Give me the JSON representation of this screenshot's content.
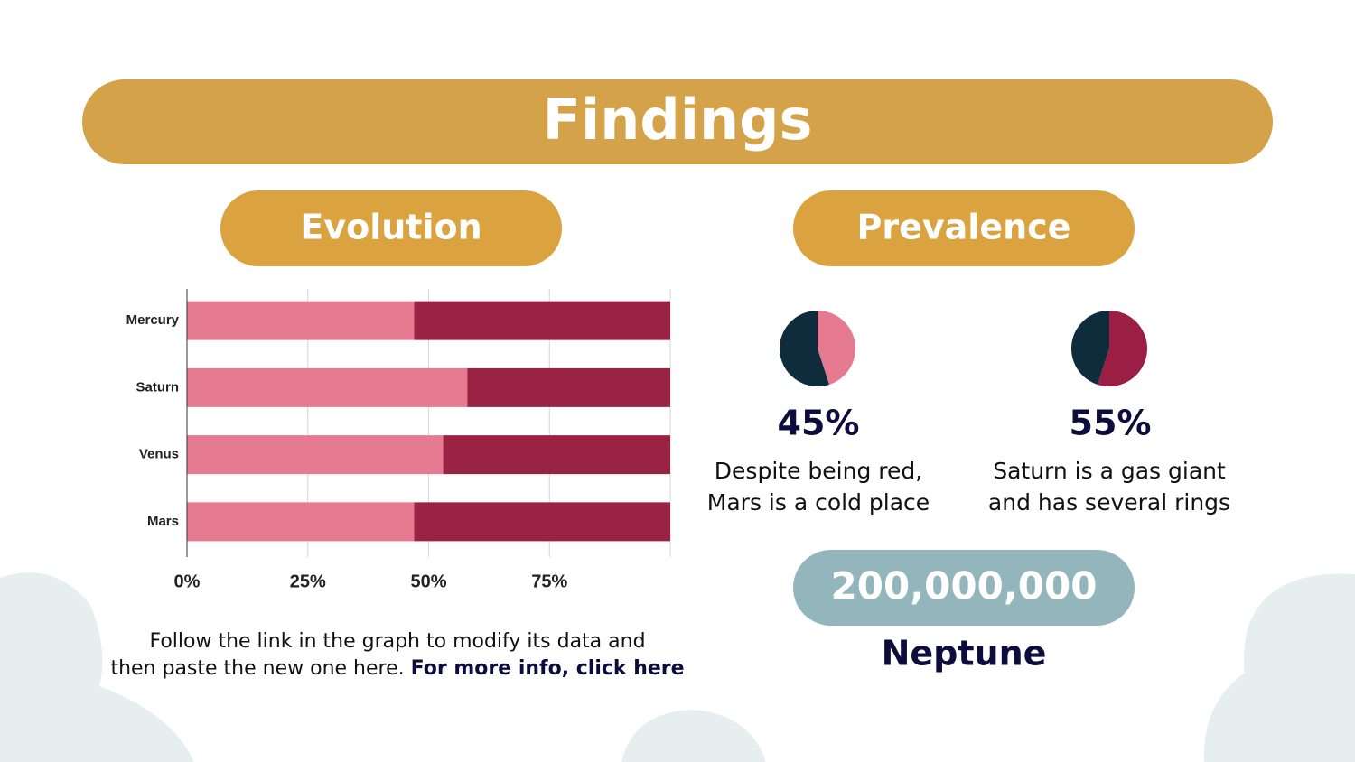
{
  "title": "Findings",
  "evolution": {
    "heading": "Evolution"
  },
  "prevalence": {
    "heading": "Prevalence",
    "items": [
      {
        "description": [
          "Despite being red,",
          "Mars is a cold place"
        ]
      },
      {
        "description": [
          "Saturn is a gas giant",
          "and has several rings"
        ]
      }
    ]
  },
  "highlight": {
    "number": "200,000,000",
    "label": "Neptune"
  },
  "footer": {
    "text": [
      "Follow the link in the graph to modify its data and",
      "then paste the new one here."
    ],
    "link": "For more info, click here"
  },
  "chart_data": [
    {
      "type": "stacked-bar-horizontal",
      "categories": [
        "Mercury",
        "Saturn",
        "Venus",
        "Mars"
      ],
      "series": [
        {
          "color": "#e57a90",
          "values": [
            47,
            58,
            53,
            47
          ]
        },
        {
          "color": "#9a2242",
          "values": [
            53,
            42,
            47,
            53
          ]
        }
      ],
      "xlim": [
        0,
        100
      ],
      "xticks": [
        {
          "value": 0,
          "label": "0%"
        },
        {
          "value": 25,
          "label": "25%"
        },
        {
          "value": 50,
          "label": "50%"
        },
        {
          "value": 75,
          "label": "75%"
        }
      ],
      "grid": true
    },
    {
      "type": "pie",
      "values": [
        45,
        55
      ],
      "colors": [
        "#e57a90",
        "#0f2c3d"
      ],
      "value_labels": [
        "45%",
        null
      ]
    },
    {
      "type": "pie",
      "values": [
        55,
        45
      ],
      "colors": [
        "#9b1f45",
        "#0f2c3d"
      ],
      "value_labels": [
        "55%",
        null
      ]
    }
  ]
}
